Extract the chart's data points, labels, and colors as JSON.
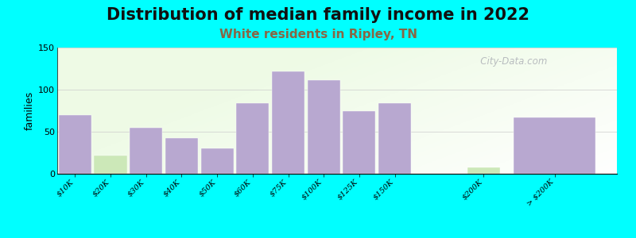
{
  "title": "Distribution of median family income in 2022",
  "subtitle": "White residents in Ripley, TN",
  "ylabel": "families",
  "categories": [
    "$10K",
    "$20K",
    "$30K",
    "$40K",
    "$50K",
    "$60K",
    "$75K",
    "$100K",
    "$125K",
    "$150K",
    "$200K",
    "> $200K"
  ],
  "values": [
    70,
    22,
    55,
    42,
    30,
    84,
    122,
    111,
    75,
    84,
    8,
    67
  ],
  "x_positions": [
    0,
    1,
    2,
    3,
    4,
    5,
    6,
    7,
    8,
    9,
    11.5,
    13.5
  ],
  "bar_widths": [
    1,
    1,
    1,
    1,
    1,
    1,
    1,
    1,
    1,
    1,
    1,
    2.5
  ],
  "bar_color": "#b8a8d0",
  "light_green_bars": [
    1,
    10
  ],
  "light_green_color": "#cce8b8",
  "ylim": [
    0,
    150
  ],
  "yticks": [
    0,
    50,
    100,
    150
  ],
  "background_color": "#00ffff",
  "title_fontsize": 15,
  "subtitle_fontsize": 11,
  "subtitle_color": "#886644",
  "watermark": "   City-Data.com",
  "title_color": "#111111"
}
